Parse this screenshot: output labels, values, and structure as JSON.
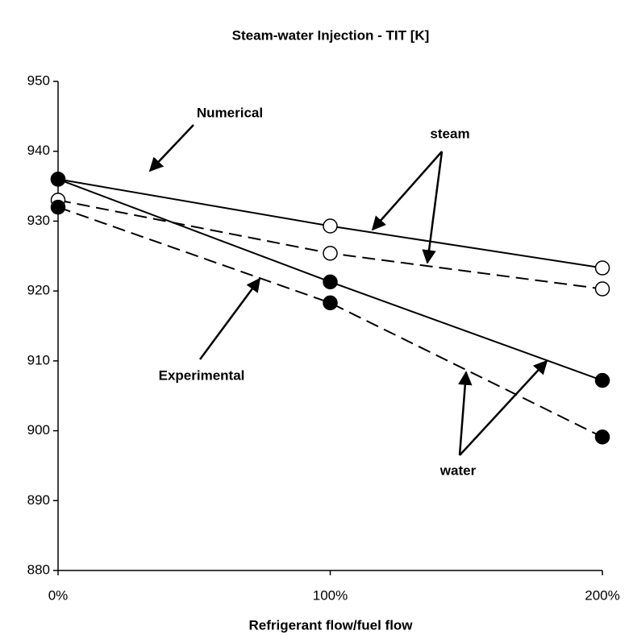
{
  "chart_data": {
    "type": "line",
    "title": "Steam-water Injection - TIT  [K]",
    "x_label": "Refrigerant flow/fuel flow",
    "categories": [
      "0%",
      "100%",
      "200%"
    ],
    "series": [
      {
        "color": "#000000",
        "style": "solid",
        "marker": "open",
        "values": [
          936,
          929.3,
          923.3
        ]
      },
      {
        "color": "#000000",
        "style": "solid",
        "marker": "filled",
        "values": [
          936,
          921.3,
          907.2
        ]
      },
      {
        "color": "#000000",
        "style": "dashed",
        "marker": "open",
        "values": [
          933,
          925.4,
          920.3
        ]
      },
      {
        "color": "#000000",
        "style": "dashed",
        "marker": "filled",
        "values": [
          932,
          918.3,
          899.1
        ]
      }
    ],
    "ylim": [
      880,
      950
    ],
    "yticks": [
      880,
      890,
      900,
      910,
      920,
      930,
      940,
      950
    ],
    "grid": false,
    "annotations": [
      "Numerical",
      "steam",
      "Experimental",
      "water"
    ]
  }
}
